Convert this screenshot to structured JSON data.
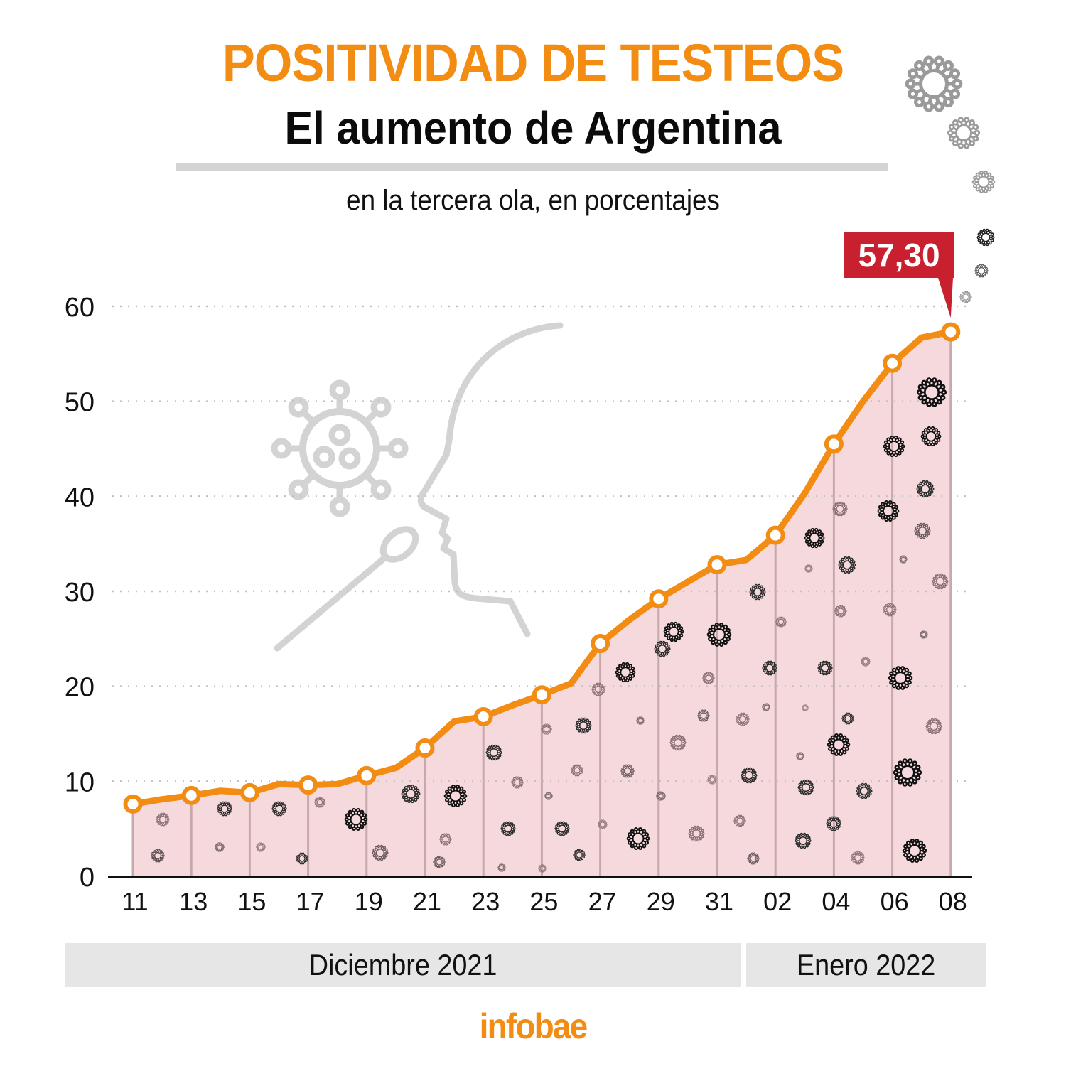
{
  "header": {
    "title": "POSITIVIDAD DE TESTEOS",
    "subtitle": "El aumento de Argentina",
    "description": "en la tercera ola, en porcentajes"
  },
  "months": [
    {
      "label": "Diciembre 2021"
    },
    {
      "label": "Enero 2022"
    }
  ],
  "logo": "infobae",
  "colors": {
    "title": "#f28c12",
    "line": "#f28c12",
    "area": "#f5d9dc",
    "callout": "#c8202e",
    "grid": "#c0c0c0",
    "illustration": "#d3d3d3"
  },
  "chart_data": {
    "type": "area",
    "title": "POSITIVIDAD DE TESTEOS - El aumento de Argentina",
    "subtitle": "en la tercera ola, en porcentajes",
    "xlabel": "",
    "ylabel": "",
    "ylim": [
      0,
      60
    ],
    "yticks": [
      0,
      10,
      20,
      30,
      40,
      50,
      60
    ],
    "grid": true,
    "x": [
      "11",
      "12",
      "13",
      "14",
      "15",
      "16",
      "17",
      "18",
      "19",
      "20",
      "21",
      "22",
      "23",
      "24",
      "25",
      "26",
      "27",
      "28",
      "29",
      "30",
      "31",
      "01",
      "02",
      "03",
      "04",
      "05",
      "06",
      "07",
      "08"
    ],
    "xtick_labels": [
      "11",
      "13",
      "15",
      "17",
      "19",
      "21",
      "23",
      "25",
      "27",
      "29",
      "31",
      "02",
      "04",
      "06",
      "08"
    ],
    "marked_points": [
      "11",
      "13",
      "15",
      "17",
      "19",
      "21",
      "23",
      "25",
      "27",
      "29",
      "31",
      "02",
      "04",
      "06",
      "08"
    ],
    "series": [
      {
        "name": "Positividad (%)",
        "values": [
          7.6,
          8.1,
          8.5,
          9.0,
          8.8,
          9.7,
          9.6,
          9.7,
          10.6,
          11.4,
          13.5,
          16.3,
          16.8,
          18.0,
          19.1,
          20.3,
          24.5,
          27.0,
          29.2,
          31.0,
          32.8,
          33.3,
          35.9,
          40.3,
          45.5,
          50.0,
          54.0,
          56.7,
          57.3
        ]
      }
    ],
    "annotation": {
      "x": "08",
      "label": "57,30",
      "value": 57.3
    },
    "month_groups": [
      {
        "label": "Diciembre 2021",
        "from": "11",
        "to": "31"
      },
      {
        "label": "Enero 2022",
        "from": "01",
        "to": "08"
      }
    ]
  }
}
